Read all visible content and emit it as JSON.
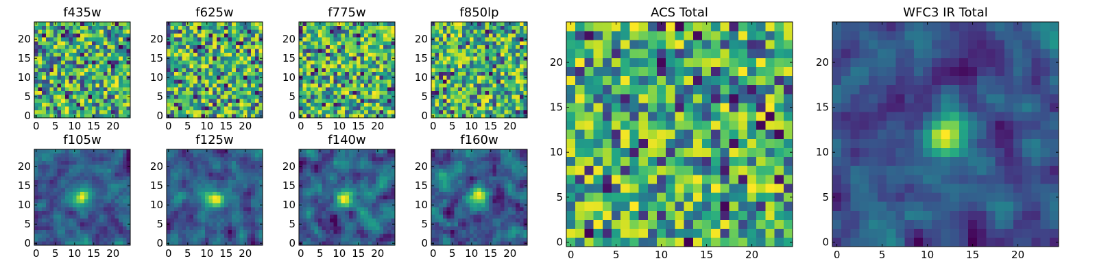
{
  "chart_data": [
    {
      "type": "heatmap",
      "title": "f435w",
      "xlim": [
        0,
        24
      ],
      "ylim": [
        0,
        24
      ],
      "xticks": [
        0,
        5,
        10,
        15,
        20
      ],
      "yticks": [
        0,
        5,
        10,
        15,
        20
      ],
      "grid_size": [
        25,
        25
      ],
      "pattern": "noise",
      "seed": 11
    },
    {
      "type": "heatmap",
      "title": "f625w",
      "xlim": [
        0,
        24
      ],
      "ylim": [
        0,
        24
      ],
      "xticks": [
        0,
        5,
        10,
        15,
        20
      ],
      "yticks": [
        0,
        5,
        10,
        15,
        20
      ],
      "grid_size": [
        25,
        25
      ],
      "pattern": "noise",
      "seed": 23
    },
    {
      "type": "heatmap",
      "title": "f775w",
      "xlim": [
        0,
        24
      ],
      "ylim": [
        0,
        24
      ],
      "xticks": [
        0,
        5,
        10,
        15,
        20
      ],
      "yticks": [
        0,
        5,
        10,
        15,
        20
      ],
      "grid_size": [
        25,
        25
      ],
      "pattern": "noise",
      "seed": 37
    },
    {
      "type": "heatmap",
      "title": "f850lp",
      "xlim": [
        0,
        24
      ],
      "ylim": [
        0,
        24
      ],
      "xticks": [
        0,
        5,
        10,
        15,
        20
      ],
      "yticks": [
        0,
        5,
        10,
        15,
        20
      ],
      "grid_size": [
        25,
        25
      ],
      "pattern": "noise",
      "seed": 41
    },
    {
      "type": "heatmap",
      "title": "f105w",
      "xlim": [
        0,
        24
      ],
      "ylim": [
        0,
        24
      ],
      "xticks": [
        0,
        5,
        10,
        15,
        20
      ],
      "yticks": [
        0,
        5,
        10,
        15,
        20
      ],
      "grid_size": [
        25,
        25
      ],
      "pattern": "source",
      "source_center": [
        12,
        12
      ],
      "seed": 53
    },
    {
      "type": "heatmap",
      "title": "f125w",
      "xlim": [
        0,
        24
      ],
      "ylim": [
        0,
        24
      ],
      "xticks": [
        0,
        5,
        10,
        15,
        20
      ],
      "yticks": [
        0,
        5,
        10,
        15,
        20
      ],
      "grid_size": [
        25,
        25
      ],
      "pattern": "source",
      "source_center": [
        12,
        12
      ],
      "seed": 67
    },
    {
      "type": "heatmap",
      "title": "f140w",
      "xlim": [
        0,
        24
      ],
      "ylim": [
        0,
        24
      ],
      "xticks": [
        0,
        5,
        10,
        15,
        20
      ],
      "yticks": [
        0,
        5,
        10,
        15,
        20
      ],
      "grid_size": [
        25,
        25
      ],
      "pattern": "source",
      "source_center": [
        12,
        12
      ],
      "seed": 79
    },
    {
      "type": "heatmap",
      "title": "f160w",
      "xlim": [
        0,
        24
      ],
      "ylim": [
        0,
        24
      ],
      "xticks": [
        0,
        5,
        10,
        15,
        20
      ],
      "yticks": [
        0,
        5,
        10,
        15,
        20
      ],
      "grid_size": [
        25,
        25
      ],
      "pattern": "source",
      "source_center": [
        12,
        12
      ],
      "seed": 83
    },
    {
      "type": "heatmap",
      "title": "ACS Total",
      "xlim": [
        0,
        24
      ],
      "ylim": [
        0,
        24
      ],
      "xticks": [
        0,
        5,
        10,
        15,
        20
      ],
      "yticks": [
        0,
        5,
        10,
        15,
        20
      ],
      "grid_size": [
        25,
        25
      ],
      "pattern": "noise",
      "seed": 97
    },
    {
      "type": "heatmap",
      "title": "WFC3 IR Total",
      "xlim": [
        0,
        24
      ],
      "ylim": [
        0,
        24
      ],
      "xticks": [
        0,
        5,
        10,
        15,
        20
      ],
      "yticks": [
        0,
        5,
        10,
        15,
        20
      ],
      "grid_size": [
        25,
        25
      ],
      "pattern": "source",
      "source_center": [
        12,
        12
      ],
      "seed": 101
    }
  ],
  "colormap": "viridis",
  "colors": {
    "low": "#440154",
    "mid": "#21918c",
    "high": "#fde725"
  }
}
